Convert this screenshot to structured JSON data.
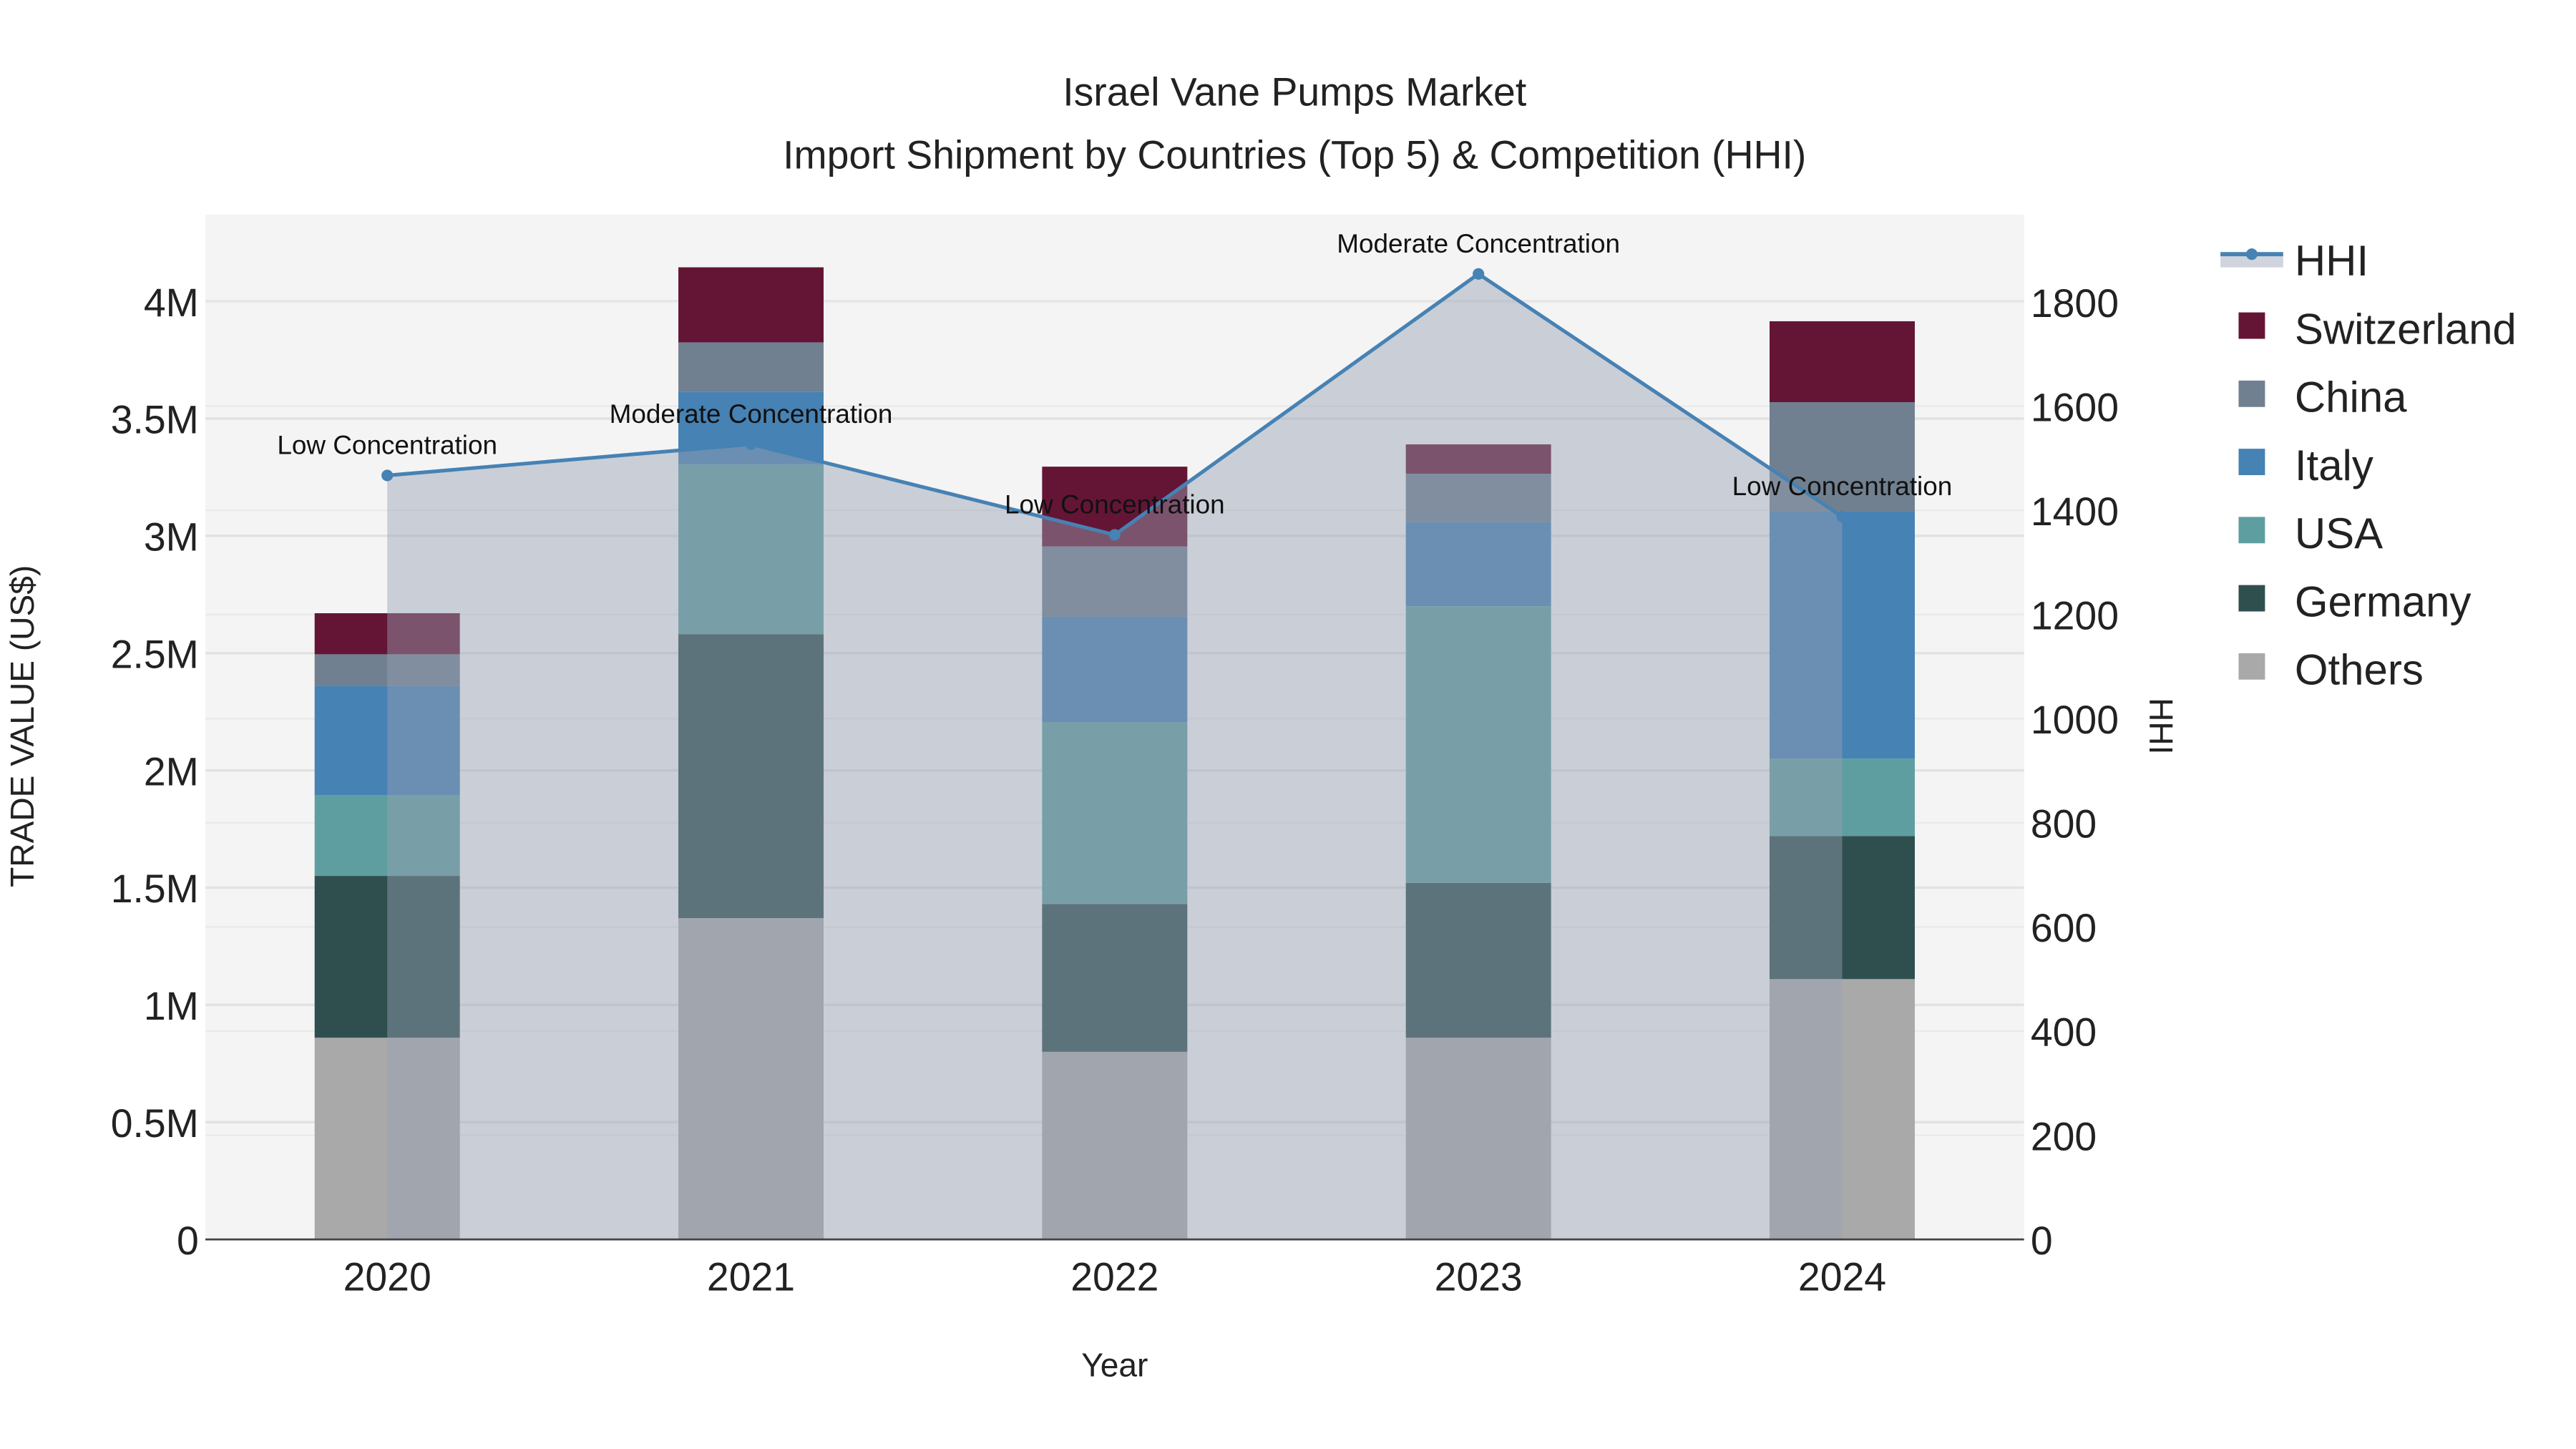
{
  "chart_data": {
    "type": "bar",
    "stacked": true,
    "title": "Israel Vane Pumps Market",
    "subtitle": "Import Shipment by Countries (Top 5) & Competition (HHI)",
    "xlabel": "Year",
    "ylabel": "TRADE VALUE (US$)",
    "y2label": "HHI",
    "categories": [
      "2020",
      "2021",
      "2022",
      "2023",
      "2024"
    ],
    "ylim": [
      0,
      4370000
    ],
    "y2lim": [
      0,
      1968
    ],
    "yticks": [
      0,
      500000,
      1000000,
      1500000,
      2000000,
      2500000,
      3000000,
      3500000,
      4000000
    ],
    "ytick_labels": [
      "0",
      "0.5M",
      "1M",
      "1.5M",
      "2M",
      "2.5M",
      "3M",
      "3.5M",
      "4M"
    ],
    "y2ticks": [
      0,
      200,
      400,
      600,
      800,
      1000,
      1200,
      1400,
      1600,
      1800
    ],
    "y2tick_labels": [
      "0",
      "200",
      "400",
      "600",
      "800",
      "1000",
      "1200",
      "1400",
      "1600",
      "1800"
    ],
    "series": [
      {
        "name": "Others",
        "color": "#A9A9A9",
        "values": [
          860000,
          1370000,
          800000,
          860000,
          1110000
        ]
      },
      {
        "name": "Germany",
        "color": "#2F4F4F",
        "values": [
          690000,
          1210000,
          630000,
          660000,
          610000
        ]
      },
      {
        "name": "USA",
        "color": "#5F9EA0",
        "values": [
          345000,
          725000,
          775000,
          1180000,
          330000
        ]
      },
      {
        "name": "Italy",
        "color": "#4682B4",
        "values": [
          465000,
          310000,
          450000,
          360000,
          1055000
        ]
      },
      {
        "name": "China",
        "color": "#708090",
        "values": [
          135000,
          210000,
          300000,
          205000,
          465000
        ]
      },
      {
        "name": "Switzerland",
        "color": "#641535",
        "values": [
          175000,
          320000,
          340000,
          125000,
          345000
        ]
      }
    ],
    "line": {
      "name": "HHI",
      "color": "#4682B4",
      "values": [
        1467,
        1527,
        1353,
        1854,
        1388
      ],
      "annotations": [
        "Low Concentration",
        "Moderate Concentration",
        "Low Concentration",
        "Moderate Concentration",
        "Low Concentration"
      ]
    },
    "legend_order": [
      "HHI",
      "Switzerland",
      "China",
      "Italy",
      "USA",
      "Germany",
      "Others"
    ],
    "legend_position": "right",
    "grid": true
  }
}
